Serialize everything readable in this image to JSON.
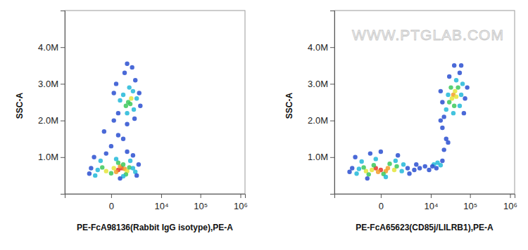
{
  "chart_data": [
    {
      "type": "scatter",
      "xlabel": "PE-FcA98136(Rabbit IgG isotype),PE-A",
      "ylabel": "SSC-A",
      "log": "x",
      "grid": false,
      "xlim": [
        -8000,
        1300000
      ],
      "xticks": [
        0,
        {
          "value": 10000,
          "label": "10⁴"
        },
        {
          "value": 100000,
          "label": "10⁵"
        },
        {
          "value": 1000000,
          "label": "10⁶"
        }
      ],
      "ylim": [
        0,
        5000000
      ],
      "yticks": [
        {
          "value": 1000000,
          "label": "1.0M"
        },
        {
          "value": 2000000,
          "label": "2.0M"
        },
        {
          "value": 3000000,
          "label": "3.0M"
        },
        {
          "value": 4000000,
          "label": "4.0M"
        }
      ],
      "x": [
        300,
        500,
        200,
        700,
        400,
        100,
        -200,
        900,
        600,
        0,
        1100,
        -400,
        300,
        800,
        -700,
        1500,
        -500,
        1200,
        200,
        -900,
        1800,
        600,
        -1300,
        2300,
        -1000,
        1500,
        -200,
        2000,
        400,
        -1500,
        900,
        0,
        600,
        -300,
        900,
        300,
        100,
        1000,
        1300,
        800,
        1200,
        600,
        1600,
        1500,
        900,
        400,
        2000,
        1100,
        200,
        1800,
        700,
        2400,
        300,
        1400,
        2600,
        100,
        900,
        1700
      ],
      "values": [
        650000,
        700000,
        600000,
        680000,
        750000,
        700000,
        620000,
        620000,
        800000,
        560000,
        720000,
        720000,
        850000,
        530000,
        650000,
        700000,
        900000,
        900000,
        950000,
        500000,
        600000,
        480000,
        700000,
        800000,
        1000000,
        1050000,
        1100000,
        500000,
        420000,
        550000,
        1150000,
        1300000,
        1500000,
        1700000,
        1900000,
        1600000,
        2000000,
        2500000,
        2600000,
        2400000,
        2450000,
        2700000,
        2300000,
        2800000,
        2200000,
        2550000,
        2600000,
        2900000,
        3000000,
        3100000,
        3300000,
        2750000,
        2200000,
        3450000,
        2400000,
        2750000,
        3550000,
        2050000
      ],
      "colors": [
        "#e8322a",
        "#e8322a",
        "#f39c2a",
        "#f39c2a",
        "#f39c2a",
        "#e4e53a",
        "#e4e53a",
        "#e4e53a",
        "#3cc85a",
        "#3cc85a",
        "#3cc85a",
        "#3cc85a",
        "#3cc85a",
        "#3cc85a",
        "#22b8d8",
        "#22b8d8",
        "#22b8d8",
        "#22b8d8",
        "#22b8d8",
        "#22b8d8",
        "#22b8d8",
        "#22b8d8",
        "#2a4fd0",
        "#2a4fd0",
        "#2a4fd0",
        "#2a4fd0",
        "#2a4fd0",
        "#2a4fd0",
        "#2a4fd0",
        "#2a4fd0",
        "#2a4fd0",
        "#2a4fd0",
        "#2a4fd0",
        "#2a4fd0",
        "#2a4fd0",
        "#2a4fd0",
        "#2a4fd0",
        "#3cc85a",
        "#e4e53a",
        "#3cc85a",
        "#3cc85a",
        "#22b8d8",
        "#22b8d8",
        "#22b8d8",
        "#22b8d8",
        "#22b8d8",
        "#22b8d8",
        "#22b8d8",
        "#2a4fd0",
        "#2a4fd0",
        "#2a4fd0",
        "#2a4fd0",
        "#2a4fd0",
        "#2a4fd0",
        "#2a4fd0",
        "#2a4fd0",
        "#2a4fd0",
        "#2a4fd0"
      ]
    },
    {
      "type": "scatter",
      "xlabel": "PE-FcA65623(CD85j/LILRB1),PE-A",
      "ylabel": "SSC-A",
      "annotations": [
        "WWW.PTGLAB.COM"
      ],
      "log": "x",
      "grid": false,
      "xlim": [
        -8000,
        1300000
      ],
      "xticks": [
        0,
        {
          "value": 10000,
          "label": "10⁴"
        },
        {
          "value": 100000,
          "label": "10⁵"
        },
        {
          "value": 1000000,
          "label": "10⁶"
        }
      ],
      "ylim": [
        0,
        5000000
      ],
      "yticks": [
        {
          "value": 1000000,
          "label": "1.0M"
        },
        {
          "value": 2000000,
          "label": "2.0M"
        },
        {
          "value": 3000000,
          "label": "3.0M"
        },
        {
          "value": 4000000,
          "label": "4.0M"
        }
      ],
      "x": [
        0,
        -200,
        200,
        -100,
        300,
        -400,
        -800,
        700,
        -300,
        100,
        -1000,
        900,
        400,
        -600,
        -1500,
        1400,
        -1200,
        800,
        -200,
        -1800,
        1600,
        200,
        -2500,
        2200,
        -2000,
        1000,
        -500,
        2500,
        -700,
        -3000,
        0,
        3500,
        5000,
        7000,
        4000,
        9000,
        12000,
        15000,
        11000,
        18000,
        14000,
        20000,
        22000,
        25000,
        20000,
        28000,
        18000,
        38000,
        42000,
        35000,
        45000,
        30000,
        50000,
        40000,
        33000,
        25000,
        60000,
        55000,
        28000,
        45000,
        38000,
        65000,
        20000,
        75000,
        30000,
        55000,
        22000,
        85000,
        40000,
        70000,
        60000,
        18000
      ],
      "values": [
        650000,
        700000,
        620000,
        600000,
        700000,
        650000,
        620000,
        650000,
        780000,
        540000,
        720000,
        750000,
        820000,
        530000,
        680000,
        620000,
        880000,
        900000,
        950000,
        550000,
        800000,
        460000,
        700000,
        700000,
        1000000,
        1050000,
        1100000,
        550000,
        420000,
        600000,
        1150000,
        650000,
        700000,
        750000,
        800000,
        650000,
        800000,
        850000,
        750000,
        780000,
        700000,
        900000,
        1200000,
        1500000,
        1800000,
        1400000,
        2000000,
        2700000,
        2800000,
        2600000,
        2650000,
        2500000,
        2900000,
        2400000,
        2900000,
        2300000,
        2700000,
        2400000,
        2700000,
        3100000,
        2200000,
        3000000,
        2500000,
        2600000,
        3200000,
        3300000,
        2100000,
        2900000,
        3500000,
        2200000,
        3500000,
        2800000
      ],
      "colors": [
        "#e8322a",
        "#e8322a",
        "#f39c2a",
        "#f39c2a",
        "#f39c2a",
        "#e4e53a",
        "#e4e53a",
        "#e4e53a",
        "#3cc85a",
        "#3cc85a",
        "#3cc85a",
        "#3cc85a",
        "#3cc85a",
        "#3cc85a",
        "#22b8d8",
        "#22b8d8",
        "#22b8d8",
        "#22b8d8",
        "#22b8d8",
        "#22b8d8",
        "#22b8d8",
        "#22b8d8",
        "#2a4fd0",
        "#2a4fd0",
        "#2a4fd0",
        "#2a4fd0",
        "#2a4fd0",
        "#2a4fd0",
        "#2a4fd0",
        "#2a4fd0",
        "#2a4fd0",
        "#2a4fd0",
        "#2a4fd0",
        "#2a4fd0",
        "#2a4fd0",
        "#2a4fd0",
        "#22b8d8",
        "#22b8d8",
        "#2a4fd0",
        "#22b8d8",
        "#2a4fd0",
        "#2a4fd0",
        "#2a4fd0",
        "#2a4fd0",
        "#2a4fd0",
        "#2a4fd0",
        "#2a4fd0",
        "#f39c2a",
        "#e4e53a",
        "#e4e53a",
        "#e4e53a",
        "#3cc85a",
        "#3cc85a",
        "#3cc85a",
        "#3cc85a",
        "#22b8d8",
        "#22b8d8",
        "#22b8d8",
        "#22b8d8",
        "#22b8d8",
        "#22b8d8",
        "#22b8d8",
        "#2a4fd0",
        "#2a4fd0",
        "#2a4fd0",
        "#2a4fd0",
        "#2a4fd0",
        "#2a4fd0",
        "#2a4fd0",
        "#2a4fd0",
        "#2a4fd0",
        "#2a4fd0"
      ]
    }
  ]
}
